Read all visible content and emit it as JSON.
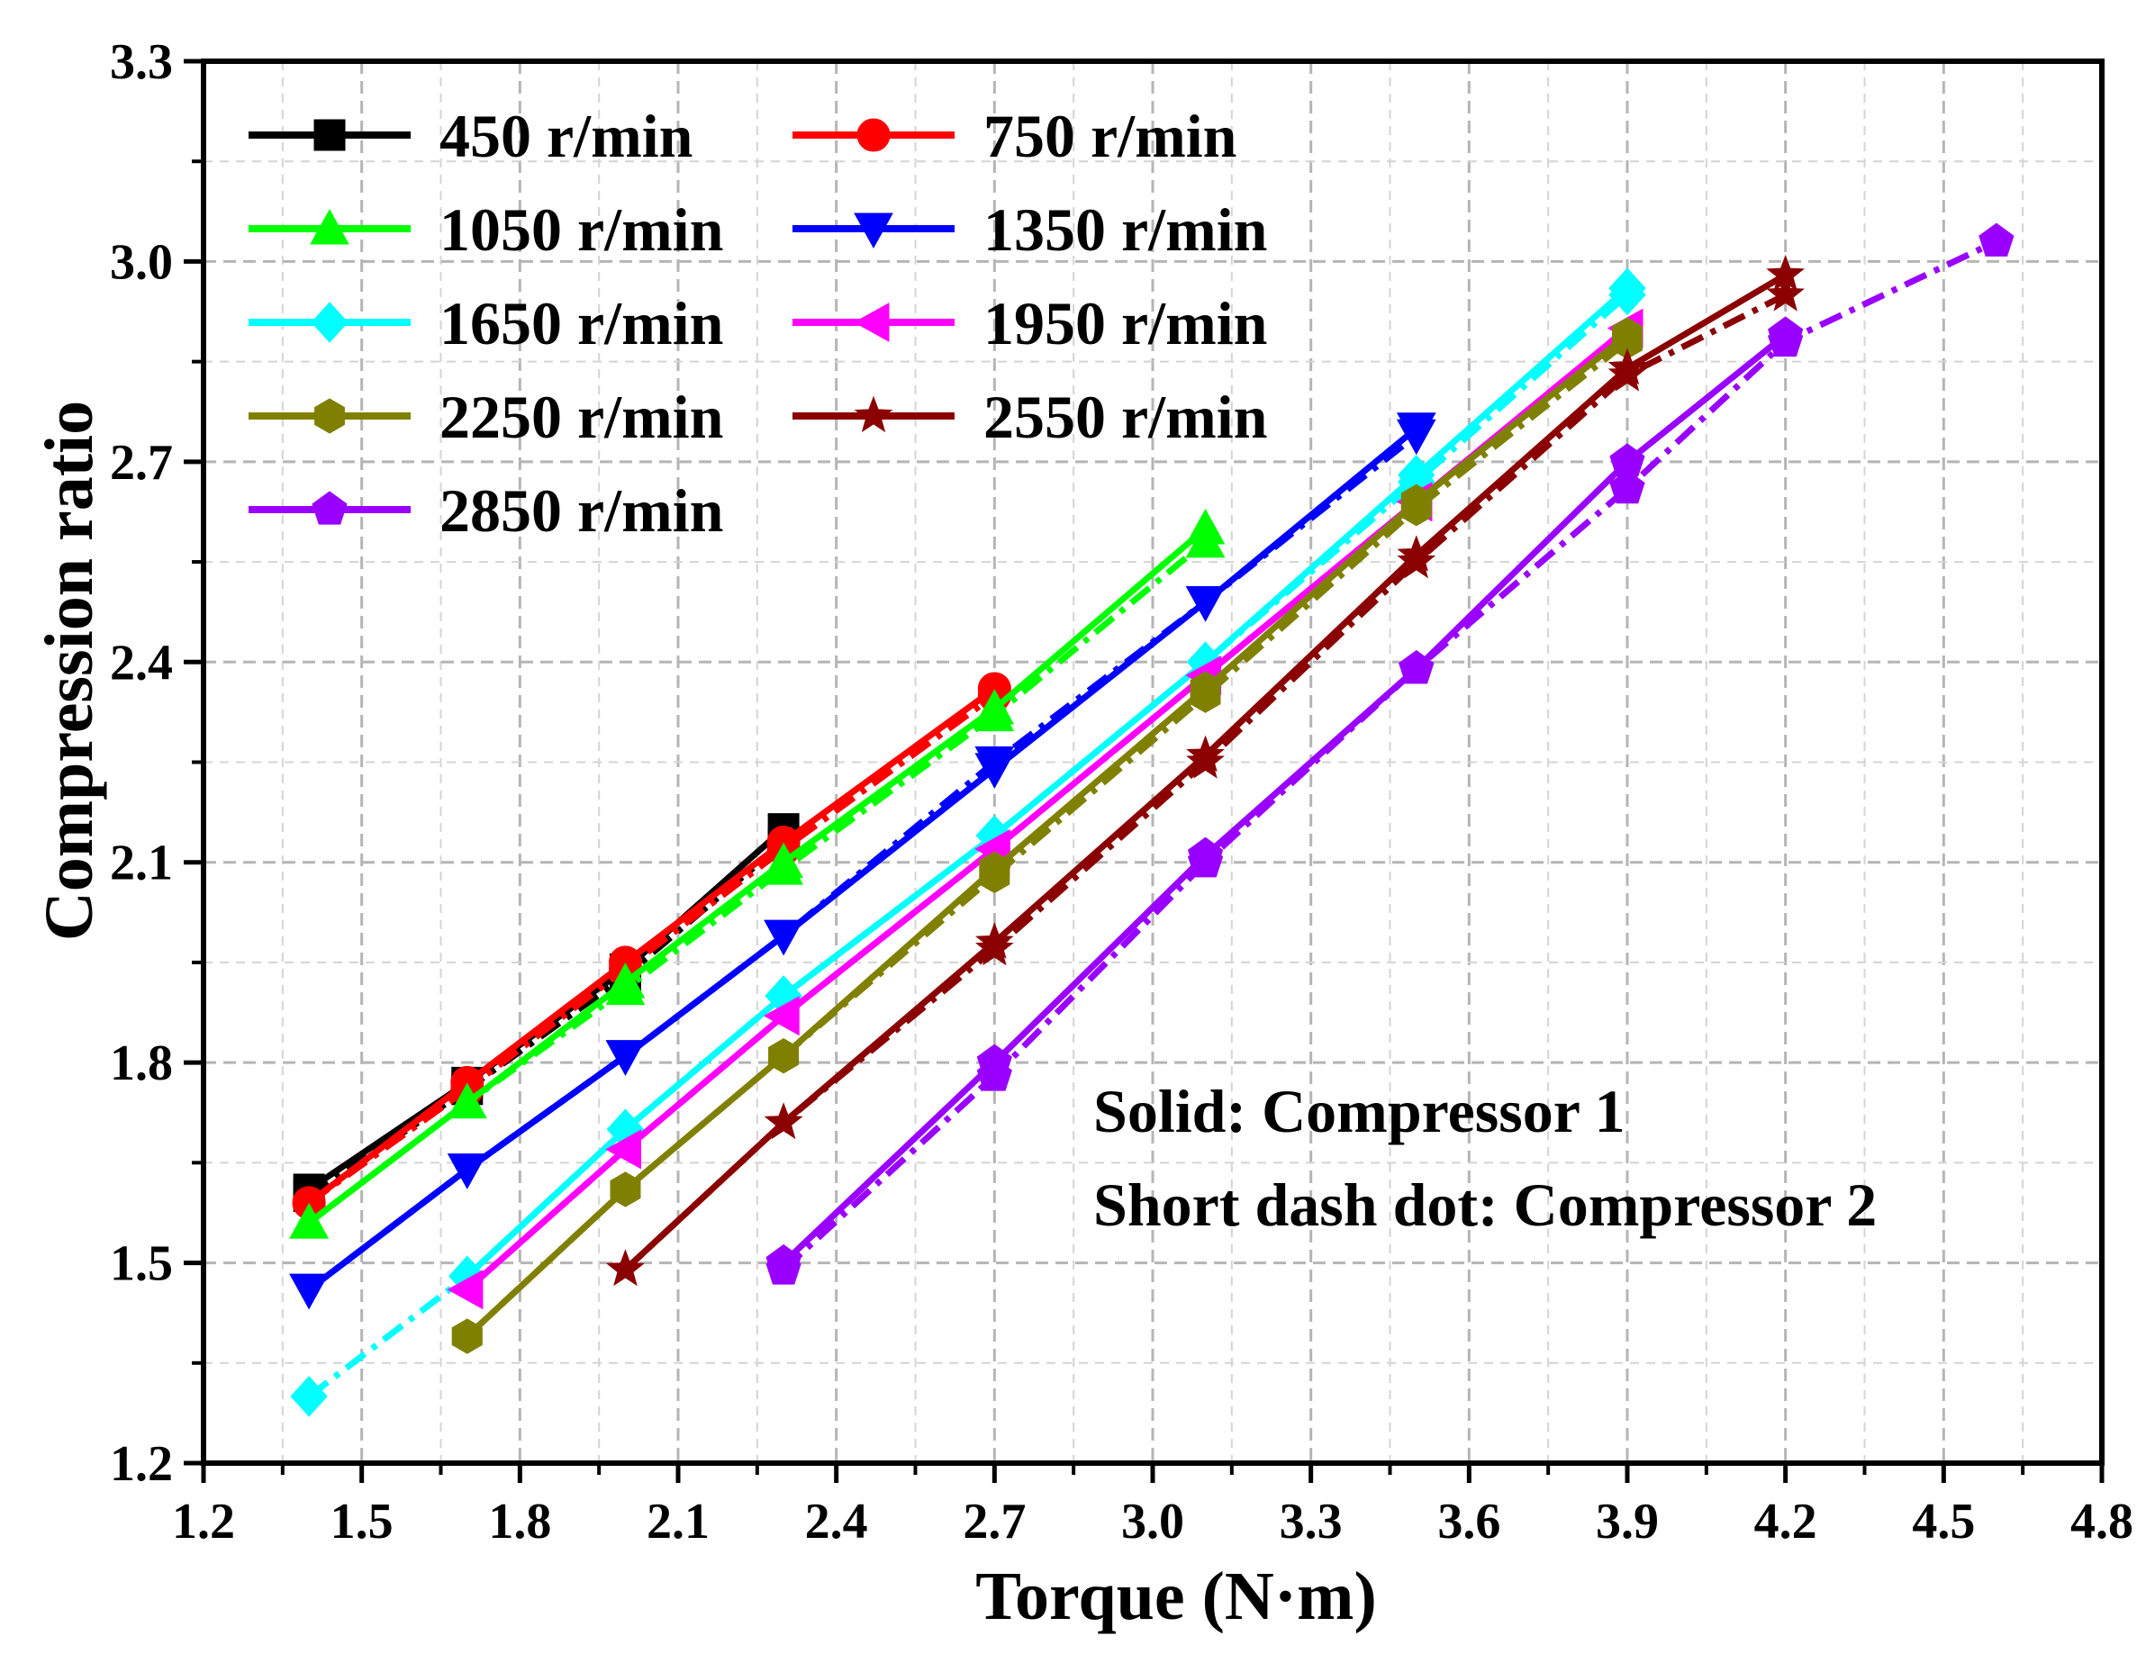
{
  "chart_data": {
    "type": "line",
    "title": "",
    "xlabel": "Torque (N·m)",
    "ylabel": "Compression ratio",
    "xlim": [
      1.2,
      4.8
    ],
    "ylim": [
      1.2,
      3.3
    ],
    "xticks": [
      1.2,
      1.5,
      1.8,
      2.1,
      2.4,
      2.7,
      3.0,
      3.3,
      3.6,
      3.9,
      4.2,
      4.5,
      4.8
    ],
    "xtick_labels": [
      "1.2",
      "1.5",
      "1.8",
      "2.1",
      "2.4",
      "2.7",
      "3.0",
      "3.3",
      "3.6",
      "3.9",
      "4.2",
      "4.5",
      "4.8"
    ],
    "yticks": [
      1.2,
      1.5,
      1.8,
      2.1,
      2.4,
      2.7,
      3.0,
      3.3
    ],
    "ytick_labels": [
      "1.2",
      "1.5",
      "1.8",
      "2.1",
      "2.4",
      "2.7",
      "3.0",
      "3.3"
    ],
    "grid": true,
    "legend_position": "top-left",
    "annotations": [
      "Solid: Compressor 1",
      "Short dash dot: Compressor 2"
    ],
    "series": [
      {
        "name": "450 r/min",
        "color": "#000000",
        "marker": "square",
        "compressor1": {
          "x": [
            1.4,
            1.7,
            2.0,
            2.3
          ],
          "y": [
            1.61,
            1.77,
            1.94,
            2.15
          ]
        },
        "compressor2": {
          "x": [
            1.4,
            1.7,
            2.0,
            2.3
          ],
          "y": [
            1.6,
            1.76,
            1.93,
            2.13
          ]
        }
      },
      {
        "name": "750 r/min",
        "color": "#ff0000",
        "marker": "circle",
        "compressor1": {
          "x": [
            1.4,
            1.7,
            2.0,
            2.3,
            2.7
          ],
          "y": [
            1.59,
            1.77,
            1.95,
            2.13,
            2.36
          ]
        },
        "compressor2": {
          "x": [
            1.4,
            1.7,
            2.0,
            2.3,
            2.7
          ],
          "y": [
            1.59,
            1.76,
            1.94,
            2.12,
            2.35
          ]
        }
      },
      {
        "name": "1050 r/min",
        "color": "#00ff00",
        "marker": "triangle-up",
        "compressor1": {
          "x": [
            1.4,
            1.7,
            2.0,
            2.3,
            2.7,
            3.1
          ],
          "y": [
            1.56,
            1.74,
            1.92,
            2.1,
            2.33,
            2.6
          ]
        },
        "compressor2": {
          "x": [
            1.4,
            1.7,
            2.0,
            2.3,
            2.7,
            3.1
          ],
          "y": [
            1.56,
            1.74,
            1.91,
            2.09,
            2.32,
            2.58
          ]
        }
      },
      {
        "name": "1350 r/min",
        "color": "#0000ff",
        "marker": "triangle-down",
        "compressor1": {
          "x": [
            1.4,
            1.7,
            2.0,
            2.3,
            2.7,
            3.1,
            3.5
          ],
          "y": [
            1.46,
            1.64,
            1.81,
            1.99,
            2.24,
            2.49,
            2.75
          ]
        },
        "compressor2": {
          "x": [
            1.4,
            1.7,
            2.0,
            2.3,
            2.7,
            3.1,
            3.5
          ],
          "y": [
            1.46,
            1.64,
            1.81,
            1.99,
            2.25,
            2.49,
            2.74
          ]
        }
      },
      {
        "name": "1650 r/min",
        "color": "#00ffff",
        "marker": "diamond",
        "compressor1": {
          "x": [
            1.7,
            2.0,
            2.3,
            2.7,
            3.1,
            3.5,
            3.9
          ],
          "y": [
            1.48,
            1.7,
            1.9,
            2.14,
            2.4,
            2.68,
            2.96
          ]
        },
        "compressor2": {
          "x": [
            1.4,
            1.7,
            2.0,
            2.3,
            2.7,
            3.1,
            3.5,
            3.9
          ],
          "y": [
            1.3,
            1.48,
            1.7,
            1.9,
            2.14,
            2.4,
            2.67,
            2.95
          ]
        }
      },
      {
        "name": "1950 r/min",
        "color": "#ff00ff",
        "marker": "triangle-left",
        "compressor1": {
          "x": [
            1.7,
            2.0,
            2.3,
            2.7,
            3.1,
            3.5,
            3.9
          ],
          "y": [
            1.46,
            1.67,
            1.87,
            2.12,
            2.38,
            2.64,
            2.9
          ]
        },
        "compressor2": {
          "x": [
            1.7,
            2.0,
            2.3,
            2.7,
            3.1,
            3.5,
            3.9
          ],
          "y": [
            1.46,
            1.67,
            1.87,
            2.12,
            2.38,
            2.64,
            2.9
          ]
        }
      },
      {
        "name": "2250 r/min",
        "color": "#808000",
        "marker": "hexagon",
        "compressor1": {
          "x": [
            1.7,
            2.0,
            2.3,
            2.7,
            3.1,
            3.5,
            3.9
          ],
          "y": [
            1.39,
            1.61,
            1.81,
            2.09,
            2.36,
            2.64,
            2.89
          ]
        },
        "compressor2": {
          "x": [
            1.7,
            2.0,
            2.3,
            2.7,
            3.1,
            3.5,
            3.9
          ],
          "y": [
            1.39,
            1.61,
            1.81,
            2.08,
            2.35,
            2.63,
            2.88
          ]
        }
      },
      {
        "name": "2550 r/min",
        "color": "#8b0000",
        "marker": "star",
        "compressor1": {
          "x": [
            2.0,
            2.3,
            2.7,
            3.1,
            3.5,
            3.9,
            4.2
          ],
          "y": [
            1.49,
            1.71,
            1.98,
            2.26,
            2.56,
            2.84,
            2.98
          ]
        },
        "compressor2": {
          "x": [
            2.0,
            2.3,
            2.7,
            3.1,
            3.5,
            3.9,
            4.2
          ],
          "y": [
            1.49,
            1.71,
            1.97,
            2.25,
            2.55,
            2.83,
            2.95
          ]
        }
      },
      {
        "name": "2850 r/min",
        "color": "#9900ff",
        "marker": "pentagon",
        "compressor1": {
          "x": [
            2.3,
            2.7,
            3.1,
            3.5,
            3.9,
            4.2
          ],
          "y": [
            1.5,
            1.8,
            2.11,
            2.39,
            2.7,
            2.89
          ]
        },
        "compressor2": {
          "x": [
            2.3,
            2.7,
            3.1,
            3.5,
            3.9,
            4.2,
            4.6
          ],
          "y": [
            1.49,
            1.78,
            2.1,
            2.39,
            2.66,
            2.88,
            3.03
          ]
        }
      }
    ]
  }
}
